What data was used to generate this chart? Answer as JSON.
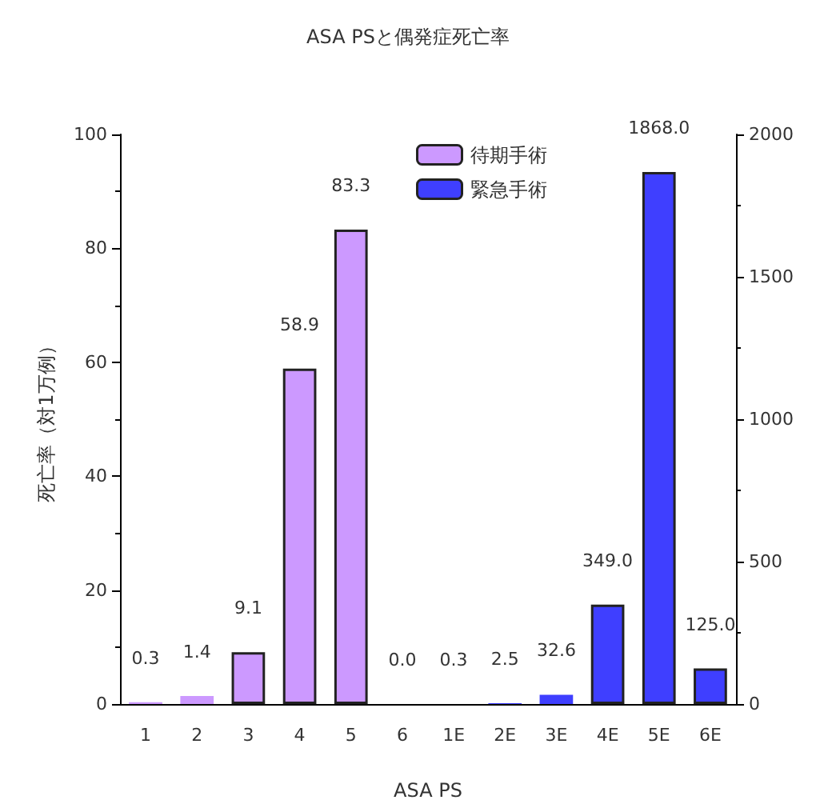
{
  "chart_data": {
    "type": "bar",
    "title": "ASA PSと偶発症死亡率",
    "xlabel": "ASA PS",
    "ylabel": "死亡率（対1万例）",
    "categories": [
      "1",
      "2",
      "3",
      "4",
      "5",
      "6",
      "1E",
      "2E",
      "3E",
      "4E",
      "5E",
      "6E"
    ],
    "series": [
      {
        "name": "待期手術",
        "color": "#cc99ff",
        "values": [
          0.3,
          1.4,
          9.1,
          58.9,
          83.3,
          0.0,
          null,
          null,
          null,
          null,
          null,
          null
        ],
        "value_labels": [
          "0.3",
          "1.4",
          "9.1",
          "58.9",
          "83.3",
          "0.0",
          null,
          null,
          null,
          null,
          null,
          null
        ]
      },
      {
        "name": "緊急手術",
        "color": "#3f3fff",
        "axis": "y2",
        "values": [
          null,
          null,
          null,
          null,
          null,
          null,
          0.3,
          2.5,
          32.6,
          349.0,
          1868.0,
          125.0
        ],
        "value_labels": [
          null,
          null,
          null,
          null,
          null,
          null,
          "0.3",
          "2.5",
          "32.6",
          "349.0",
          "1868.0",
          "125.0"
        ]
      }
    ],
    "ylim": [
      0,
      100
    ],
    "yticks": [
      0,
      20,
      40,
      60,
      80,
      100
    ],
    "y2lim": [
      0,
      2000
    ],
    "y2ticks": [
      0,
      500,
      1000,
      1500,
      2000
    ],
    "grid": false,
    "legend": "top"
  }
}
